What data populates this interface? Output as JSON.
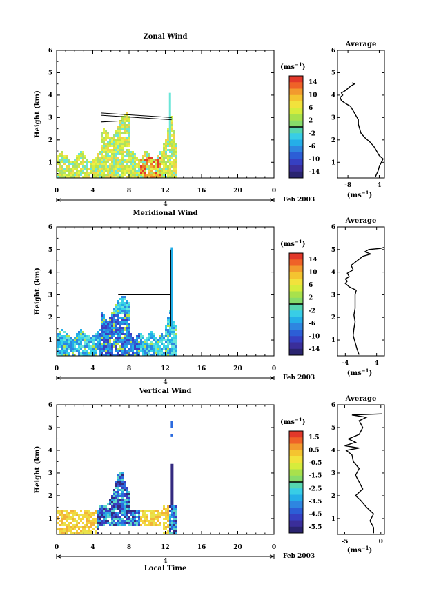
{
  "colors": {
    "palette_warm": [
      "#e8f24a",
      "#d8ec3c",
      "#b8e44a",
      "#a7df72",
      "#f2d24a",
      "#f0b030",
      "#ea7a28",
      "#e23a2a"
    ],
    "palette_cool": [
      "#6ae6d8",
      "#38d2e8",
      "#22aee8",
      "#2e84e0",
      "#2c5ed6",
      "#3a3ec0",
      "#352e8c"
    ],
    "vertical_ramp": [
      "#f4d43e",
      "#f2b238",
      "#e9e24a",
      "#b2de5e",
      "#5ed6c8",
      "#2aa8e4",
      "#2b6ade",
      "#3a3ebe",
      "#342a80"
    ]
  },
  "chart_data": [
    {
      "type": "heatmap",
      "title": "Zonal Wind",
      "ylabel": "Height (km)",
      "xlabel": "",
      "date_label": "4",
      "date_suffix": "Feb 2003",
      "xlim": [
        0,
        24
      ],
      "ylim": [
        0.3,
        6
      ],
      "xticks": [
        "0",
        "4",
        "8",
        "12",
        "16",
        "20",
        "0"
      ],
      "yticks": [
        "1",
        "2",
        "3",
        "4",
        "5",
        "6"
      ],
      "colorbar": {
        "unit": "(ms",
        "unit_exp": "−1",
        "labels": [
          "14",
          "10",
          "6",
          "2",
          "-2",
          "-6",
          "-10",
          "-14"
        ],
        "colors": [
          "#e2382a",
          "#ef6228",
          "#f29a2e",
          "#f4c430",
          "#f2e23c",
          "#d6ec3c",
          "#a8e14c",
          "#86dc6a",
          "#56d7b0",
          "#38cde6",
          "#25aee8",
          "#2e86e0",
          "#2c5ed6",
          "#3640c2",
          "#3a2e9a",
          "#2a2470"
        ]
      },
      "profile": {
        "title": "Average",
        "xticks": [
          "-8",
          "4"
        ],
        "xlim": [
          -12,
          6
        ],
        "xlabel": "(ms",
        "xlabel_exp": "−1",
        "height": [
          0.35,
          0.6,
          0.8,
          1.0,
          1.15,
          1.3,
          1.5,
          1.7,
          1.9,
          2.1,
          2.3,
          2.5,
          2.7,
          2.9,
          3.1,
          3.3,
          3.5,
          3.6,
          3.75,
          3.9,
          4.0,
          4.1,
          4.2,
          4.3,
          4.4,
          4.5,
          4.55
        ],
        "value": [
          2.5,
          3.5,
          4.0,
          4.8,
          5.5,
          4.0,
          3.0,
          2.0,
          0.5,
          -1.5,
          -3.0,
          -3.5,
          -4.0,
          -4.0,
          -5.0,
          -6.0,
          -7.0,
          -8.5,
          -10.5,
          -11.0,
          -10.0,
          -10.5,
          -9.0,
          -8.0,
          -7.0,
          -5.5,
          -6.5
        ]
      }
    },
    {
      "type": "heatmap",
      "title": "Meridional Wind",
      "ylabel": "Height (km)",
      "xlabel": "",
      "date_label": "4",
      "date_suffix": "Feb 2003",
      "xlim": [
        0,
        24
      ],
      "ylim": [
        0.3,
        6
      ],
      "xticks": [
        "0",
        "4",
        "8",
        "12",
        "16",
        "20",
        "0"
      ],
      "yticks": [
        "1",
        "2",
        "3",
        "4",
        "5",
        "6"
      ],
      "colorbar": {
        "unit": "(ms",
        "unit_exp": "−1",
        "labels": [
          "14",
          "10",
          "6",
          "2",
          "-2",
          "-6",
          "-10",
          "-14"
        ],
        "colors": [
          "#e2382a",
          "#ef6228",
          "#f29a2e",
          "#f4c430",
          "#f2e23c",
          "#d6ec3c",
          "#a8e14c",
          "#86dc6a",
          "#56d7b0",
          "#38cde6",
          "#25aee8",
          "#2e86e0",
          "#2c5ed6",
          "#3640c2",
          "#3a2e9a",
          "#2a2470"
        ]
      },
      "profile": {
        "title": "Average",
        "xticks": [
          "-4",
          "4"
        ],
        "xlim": [
          -6,
          6
        ],
        "xlabel": "(ms",
        "xlabel_exp": "−1",
        "height": [
          0.35,
          0.6,
          0.9,
          1.2,
          1.5,
          1.8,
          2.1,
          2.4,
          2.7,
          3.0,
          3.2,
          3.35,
          3.5,
          3.6,
          3.7,
          3.8,
          3.95,
          4.1,
          4.3,
          4.5,
          4.7,
          4.8,
          4.9,
          5.0,
          5.05,
          5.1
        ],
        "value": [
          -0.5,
          -1.0,
          -1.5,
          -2.0,
          -1.8,
          -1.5,
          -1.8,
          -1.5,
          -1.5,
          -1.5,
          -1.2,
          -3.0,
          -4.0,
          -3.5,
          -4.0,
          -3.0,
          -3.5,
          -2.0,
          -2.5,
          -1.0,
          0.5,
          2.5,
          1.0,
          2.0,
          5.0,
          6.5
        ]
      }
    },
    {
      "type": "heatmap",
      "title": "Vertical Wind",
      "ylabel": "Height (km)",
      "xlabel": "Local Time",
      "date_label": "4",
      "date_suffix": "Feb 2003",
      "xlim": [
        0,
        24
      ],
      "ylim": [
        0.3,
        6
      ],
      "xticks": [
        "0",
        "4",
        "8",
        "12",
        "16",
        "20",
        "0"
      ],
      "yticks": [
        "1",
        "2",
        "3",
        "4",
        "5",
        "6"
      ],
      "colorbar": {
        "unit": "(ms",
        "unit_exp": "−1",
        "labels": [
          "1.5",
          "0.5",
          "-0.5",
          "-1.5",
          "-2.5",
          "-3.5",
          "-4.5",
          "-5.5"
        ],
        "colors": [
          "#e2382a",
          "#ef6228",
          "#f29a2e",
          "#f4c430",
          "#f2e23c",
          "#d6ec3c",
          "#a8e14c",
          "#86dc6a",
          "#56d7b0",
          "#38cde6",
          "#25aee8",
          "#2e86e0",
          "#2c5ed6",
          "#3640c2",
          "#3a2e9a",
          "#2a2470"
        ]
      },
      "profile": {
        "title": "Average",
        "xticks": [
          "-5",
          "0"
        ],
        "xlim": [
          -6,
          0.5
        ],
        "xlabel": "(ms",
        "xlabel_exp": "−1",
        "height": [
          0.35,
          0.6,
          0.9,
          1.2,
          1.5,
          1.8,
          2.0,
          2.3,
          2.6,
          2.9,
          3.2,
          3.5,
          3.8,
          4.0,
          4.1,
          4.2,
          4.35,
          4.5,
          4.7,
          5.0,
          5.3,
          5.45,
          5.55,
          5.6
        ],
        "value": [
          -1.0,
          -1.0,
          -1.5,
          -1.0,
          -2.0,
          -2.8,
          -3.5,
          -2.5,
          -3.0,
          -3.5,
          -3.0,
          -3.8,
          -4.0,
          -4.8,
          -3.0,
          -5.0,
          -3.5,
          -4.5,
          -3.0,
          -2.5,
          -3.0,
          -2.0,
          -4.0,
          0.2
        ]
      }
    }
  ]
}
